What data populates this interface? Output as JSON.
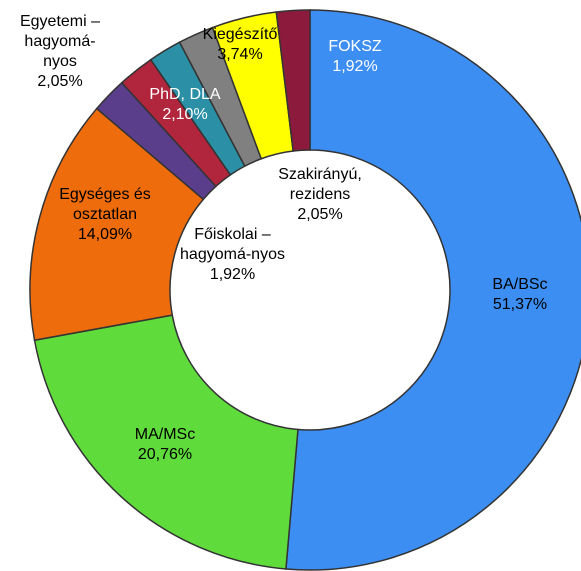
{
  "chart_data": {
    "type": "donut",
    "categories": [
      "BA/BSc",
      "MA/MSc",
      "Egységes és osztatlan",
      "Egyetemi – hagyomá-nyos",
      "PhD, DLA",
      "Főiskolai – hagyomá-nyos",
      "Szakirányú, rezidens",
      "Kiegészítő",
      "FOKSZ"
    ],
    "values": [
      51.37,
      20.76,
      14.09,
      2.05,
      2.1,
      1.92,
      2.05,
      3.74,
      1.92
    ],
    "value_labels": [
      "51,37%",
      "20,76%",
      "14,09%",
      "2,05%",
      "2,10%",
      "1,92%",
      "2,05%",
      "3,74%",
      "1,92%"
    ],
    "colors": [
      "#3d8ef2",
      "#5fdc3c",
      "#ee6c0c",
      "#5a3e8c",
      "#b1263d",
      "#2b8fa6",
      "#808080",
      "#ffff00",
      "#8c1a3c"
    ]
  }
}
